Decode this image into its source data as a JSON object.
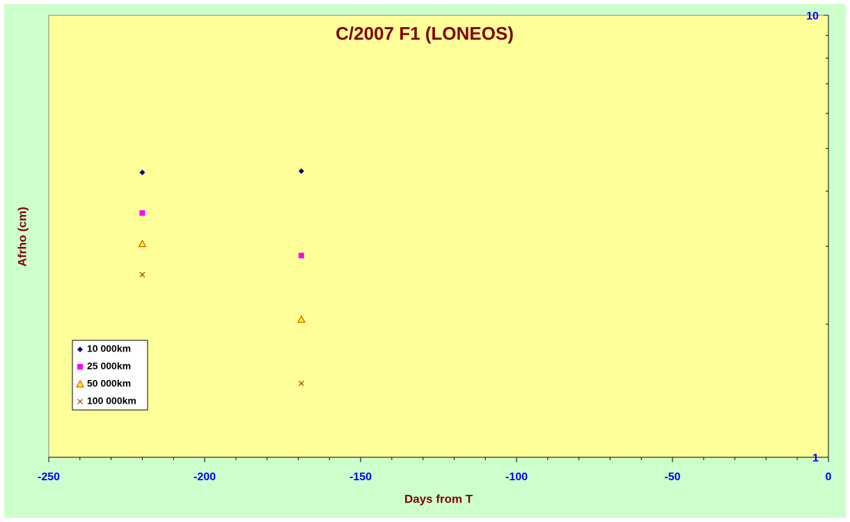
{
  "chart_data": {
    "type": "scatter",
    "title": "C/2007 F1 (LONEOS)",
    "x_label": "Days from T",
    "y_label": "Afrho (cm)",
    "xlim": [
      -250,
      0
    ],
    "xticks": [
      -250,
      -200,
      -150,
      -100,
      -50,
      0
    ],
    "xminor_ticks": [
      -240,
      -230,
      -220,
      -210,
      -190,
      -180,
      -170,
      -160,
      -140,
      -130,
      -120,
      -110,
      -90,
      -80,
      -70,
      -60,
      -40,
      -30,
      -20,
      -10
    ],
    "ylim": [
      1,
      10
    ],
    "yticks": [
      1,
      10
    ],
    "yminor_ticks": [
      2,
      3,
      4,
      5,
      6,
      7,
      8,
      9
    ],
    "y_scale": "log",
    "y_axis_side": "right",
    "legend": "lower left",
    "series": [
      {
        "name": "10 000km",
        "color": "#000080",
        "marker": "diamond",
        "x": [
          -220,
          -169
        ],
        "values": [
          4.41,
          4.44
        ]
      },
      {
        "name": "25 000km",
        "color": "#ff00ff",
        "marker": "square",
        "x": [
          -220,
          -169
        ],
        "values": [
          3.57,
          2.86
        ]
      },
      {
        "name": "50 000km",
        "color": "#ffff00",
        "marker": "triangle",
        "x": [
          -220,
          -169
        ],
        "values": [
          3.04,
          2.05
        ]
      },
      {
        "name": "100 000km",
        "color": "#993300",
        "marker": "x",
        "x": [
          -220,
          -169
        ],
        "values": [
          2.59,
          1.47
        ]
      }
    ]
  }
}
